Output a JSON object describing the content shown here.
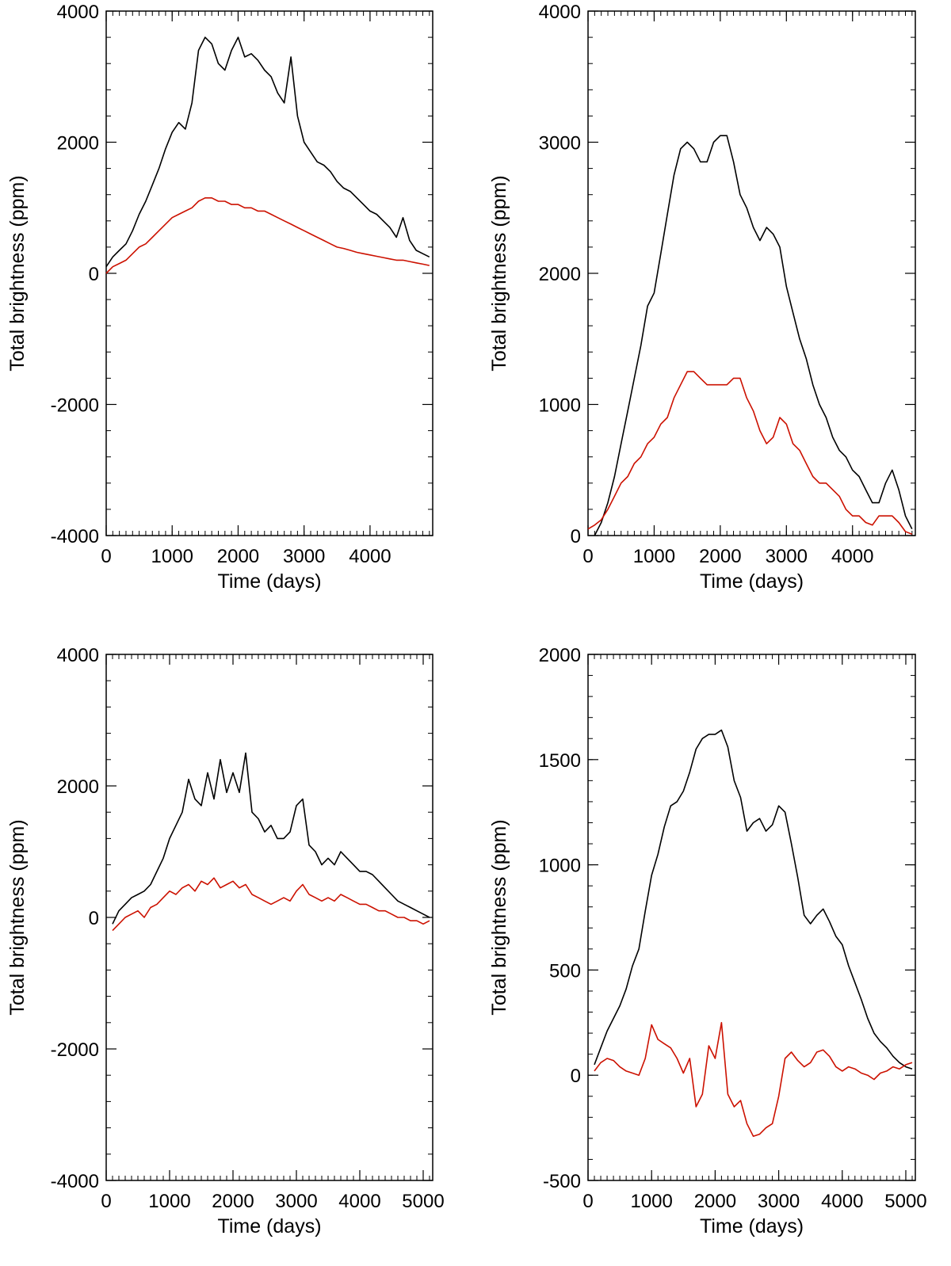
{
  "chart_data": [
    {
      "type": "line",
      "xlabel": "Time (days)",
      "ylabel": "Total brightness (ppm)",
      "xlim": [
        0,
        4950
      ],
      "ylim": [
        -4000,
        4000
      ],
      "xticks": [
        0,
        1000,
        2000,
        3000,
        4000
      ],
      "yticks": [
        -4000,
        -2000,
        0,
        2000,
        4000
      ],
      "colors": [
        "#000000",
        "#cc1100"
      ],
      "series": [
        {
          "x": [
            0,
            100,
            200,
            300,
            400,
            500,
            600,
            700,
            800,
            900,
            1000,
            1100,
            1200,
            1300,
            1400,
            1500,
            1600,
            1700,
            1800,
            1900,
            2000,
            2100,
            2200,
            2300,
            2400,
            2500,
            2600,
            2700,
            2800,
            2900,
            3000,
            3100,
            3200,
            3300,
            3400,
            3500,
            3600,
            3700,
            3800,
            3900,
            4000,
            4100,
            4200,
            4300,
            4400,
            4500,
            4600,
            4700,
            4800,
            4900
          ],
          "y": [
            100,
            250,
            350,
            450,
            650,
            900,
            1100,
            1350,
            1600,
            1900,
            2150,
            2300,
            2200,
            2600,
            3400,
            3600,
            3500,
            3200,
            3100,
            3400,
            3600,
            3300,
            3350,
            3250,
            3100,
            3000,
            2750,
            2600,
            3300,
            2400,
            2000,
            1850,
            1700,
            1650,
            1550,
            1400,
            1300,
            1250,
            1150,
            1050,
            950,
            900,
            800,
            700,
            550,
            850,
            500,
            350,
            300,
            250
          ]
        },
        {
          "x": [
            0,
            100,
            200,
            300,
            400,
            500,
            600,
            700,
            800,
            900,
            1000,
            1100,
            1200,
            1300,
            1400,
            1500,
            1600,
            1700,
            1800,
            1900,
            2000,
            2100,
            2200,
            2300,
            2400,
            2500,
            2600,
            2700,
            2800,
            2900,
            3000,
            3100,
            3200,
            3300,
            3400,
            3500,
            3600,
            3700,
            3800,
            3900,
            4000,
            4100,
            4200,
            4300,
            4400,
            4500,
            4600,
            4700,
            4800,
            4900
          ],
          "y": [
            0,
            100,
            150,
            200,
            300,
            400,
            450,
            550,
            650,
            750,
            850,
            900,
            950,
            1000,
            1100,
            1150,
            1150,
            1100,
            1100,
            1050,
            1050,
            1000,
            1000,
            950,
            950,
            900,
            850,
            800,
            750,
            700,
            650,
            600,
            550,
            500,
            450,
            400,
            380,
            350,
            320,
            300,
            280,
            260,
            240,
            220,
            200,
            200,
            180,
            160,
            140,
            120
          ]
        }
      ]
    },
    {
      "type": "line",
      "xlabel": "Time (days)",
      "ylabel": "Total brightness (ppm)",
      "xlim": [
        0,
        4950
      ],
      "ylim": [
        0,
        4000
      ],
      "xticks": [
        0,
        1000,
        2000,
        3000,
        4000
      ],
      "yticks": [
        0,
        1000,
        2000,
        3000,
        4000
      ],
      "colors": [
        "#000000",
        "#cc1100"
      ],
      "series": [
        {
          "x": [
            100,
            200,
            300,
            400,
            500,
            600,
            700,
            800,
            900,
            1000,
            1100,
            1200,
            1300,
            1400,
            1500,
            1600,
            1700,
            1800,
            1900,
            2000,
            2100,
            2200,
            2300,
            2400,
            2500,
            2600,
            2700,
            2800,
            2900,
            3000,
            3100,
            3200,
            3300,
            3400,
            3500,
            3600,
            3700,
            3800,
            3900,
            4000,
            4100,
            4200,
            4300,
            4400,
            4500,
            4600,
            4700,
            4800,
            4900
          ],
          "y": [
            0,
            100,
            250,
            450,
            700,
            950,
            1200,
            1450,
            1750,
            1850,
            2150,
            2450,
            2750,
            2950,
            3000,
            2950,
            2850,
            2850,
            3000,
            3050,
            3050,
            2850,
            2600,
            2500,
            2350,
            2250,
            2350,
            2300,
            2200,
            1900,
            1700,
            1500,
            1350,
            1150,
            1000,
            900,
            750,
            650,
            600,
            500,
            450,
            350,
            250,
            250,
            400,
            500,
            350,
            150,
            50
          ]
        },
        {
          "x": [
            0,
            100,
            200,
            300,
            400,
            500,
            600,
            700,
            800,
            900,
            1000,
            1100,
            1200,
            1300,
            1400,
            1500,
            1600,
            1700,
            1800,
            1900,
            2000,
            2100,
            2200,
            2300,
            2400,
            2500,
            2600,
            2700,
            2800,
            2900,
            3000,
            3100,
            3200,
            3300,
            3400,
            3500,
            3600,
            3700,
            3800,
            3900,
            4000,
            4100,
            4200,
            4300,
            4400,
            4500,
            4600,
            4700,
            4800,
            4900
          ],
          "y": [
            50,
            80,
            120,
            200,
            300,
            400,
            450,
            550,
            600,
            700,
            750,
            850,
            900,
            1050,
            1150,
            1250,
            1250,
            1200,
            1150,
            1150,
            1150,
            1150,
            1200,
            1200,
            1050,
            950,
            800,
            700,
            750,
            900,
            850,
            700,
            650,
            550,
            450,
            400,
            400,
            350,
            300,
            200,
            150,
            150,
            100,
            80,
            150,
            150,
            150,
            100,
            30,
            10
          ]
        }
      ]
    },
    {
      "type": "line",
      "xlabel": "Time (days)",
      "ylabel": "Total brightness (ppm)",
      "xlim": [
        0,
        5150
      ],
      "ylim": [
        -4000,
        4000
      ],
      "xticks": [
        0,
        1000,
        2000,
        3000,
        4000,
        5000
      ],
      "yticks": [
        -4000,
        -2000,
        0,
        2000,
        4000
      ],
      "colors": [
        "#000000",
        "#cc1100"
      ],
      "series": [
        {
          "x": [
            100,
            200,
            300,
            400,
            500,
            600,
            700,
            800,
            900,
            1000,
            1100,
            1200,
            1300,
            1400,
            1500,
            1600,
            1700,
            1800,
            1900,
            2000,
            2100,
            2200,
            2300,
            2400,
            2500,
            2600,
            2700,
            2800,
            2900,
            3000,
            3100,
            3200,
            3300,
            3400,
            3500,
            3600,
            3700,
            3800,
            3900,
            4000,
            4100,
            4200,
            4300,
            4400,
            4500,
            4600,
            4700,
            4800,
            4900,
            5000,
            5100
          ],
          "y": [
            -100,
            100,
            200,
            300,
            350,
            400,
            500,
            700,
            900,
            1200,
            1400,
            1600,
            2100,
            1800,
            1700,
            2200,
            1800,
            2400,
            1900,
            2200,
            1900,
            2500,
            1600,
            1500,
            1300,
            1400,
            1200,
            1200,
            1300,
            1700,
            1800,
            1100,
            1000,
            800,
            900,
            800,
            1000,
            900,
            800,
            700,
            700,
            650,
            550,
            450,
            350,
            250,
            200,
            150,
            100,
            50,
            0
          ]
        },
        {
          "x": [
            100,
            200,
            300,
            400,
            500,
            600,
            700,
            800,
            900,
            1000,
            1100,
            1200,
            1300,
            1400,
            1500,
            1600,
            1700,
            1800,
            1900,
            2000,
            2100,
            2200,
            2300,
            2400,
            2500,
            2600,
            2700,
            2800,
            2900,
            3000,
            3100,
            3200,
            3300,
            3400,
            3500,
            3600,
            3700,
            3800,
            3900,
            4000,
            4100,
            4200,
            4300,
            4400,
            4500,
            4600,
            4700,
            4800,
            4900,
            5000,
            5100
          ],
          "y": [
            -200,
            -100,
            0,
            50,
            100,
            0,
            150,
            200,
            300,
            400,
            350,
            450,
            500,
            400,
            550,
            500,
            600,
            450,
            500,
            550,
            450,
            500,
            350,
            300,
            250,
            200,
            250,
            300,
            250,
            400,
            500,
            350,
            300,
            250,
            300,
            250,
            350,
            300,
            250,
            200,
            200,
            150,
            100,
            100,
            50,
            0,
            0,
            -50,
            -50,
            -100,
            -50
          ]
        }
      ]
    },
    {
      "type": "line",
      "xlabel": "Time (days)",
      "ylabel": "Total brightness (ppm)",
      "xlim": [
        0,
        5150
      ],
      "ylim": [
        -500,
        2000
      ],
      "xticks": [
        0,
        1000,
        2000,
        3000,
        4000,
        5000
      ],
      "yticks": [
        -500,
        0,
        500,
        1000,
        1500,
        2000
      ],
      "colors": [
        "#000000",
        "#cc1100"
      ],
      "series": [
        {
          "x": [
            100,
            200,
            300,
            400,
            500,
            600,
            700,
            800,
            900,
            1000,
            1100,
            1200,
            1300,
            1400,
            1500,
            1600,
            1700,
            1800,
            1900,
            2000,
            2100,
            2200,
            2300,
            2400,
            2500,
            2600,
            2700,
            2800,
            2900,
            3000,
            3100,
            3200,
            3300,
            3400,
            3500,
            3600,
            3700,
            3800,
            3900,
            4000,
            4100,
            4200,
            4300,
            4400,
            4500,
            4600,
            4700,
            4800,
            4900,
            5000,
            5100
          ],
          "y": [
            50,
            130,
            210,
            270,
            330,
            410,
            520,
            600,
            780,
            950,
            1050,
            1180,
            1280,
            1300,
            1350,
            1440,
            1550,
            1600,
            1620,
            1620,
            1640,
            1560,
            1400,
            1320,
            1160,
            1200,
            1220,
            1160,
            1190,
            1280,
            1250,
            1100,
            940,
            760,
            720,
            760,
            790,
            730,
            660,
            620,
            520,
            440,
            360,
            270,
            200,
            160,
            130,
            90,
            60,
            40,
            30
          ]
        },
        {
          "x": [
            100,
            200,
            300,
            400,
            500,
            600,
            700,
            800,
            900,
            1000,
            1100,
            1200,
            1300,
            1400,
            1500,
            1600,
            1700,
            1800,
            1900,
            2000,
            2100,
            2200,
            2300,
            2400,
            2500,
            2600,
            2700,
            2800,
            2900,
            3000,
            3100,
            3200,
            3300,
            3400,
            3500,
            3600,
            3700,
            3800,
            3900,
            4000,
            4100,
            4200,
            4300,
            4400,
            4500,
            4600,
            4700,
            4800,
            4900,
            5000,
            5100
          ],
          "y": [
            20,
            60,
            80,
            70,
            40,
            20,
            10,
            0,
            80,
            240,
            170,
            150,
            130,
            80,
            10,
            80,
            -150,
            -90,
            140,
            80,
            250,
            -90,
            -150,
            -120,
            -230,
            -290,
            -280,
            -250,
            -230,
            -100,
            80,
            110,
            70,
            40,
            60,
            110,
            120,
            90,
            40,
            20,
            40,
            30,
            10,
            0,
            -20,
            10,
            20,
            40,
            30,
            50,
            60
          ]
        }
      ]
    }
  ]
}
